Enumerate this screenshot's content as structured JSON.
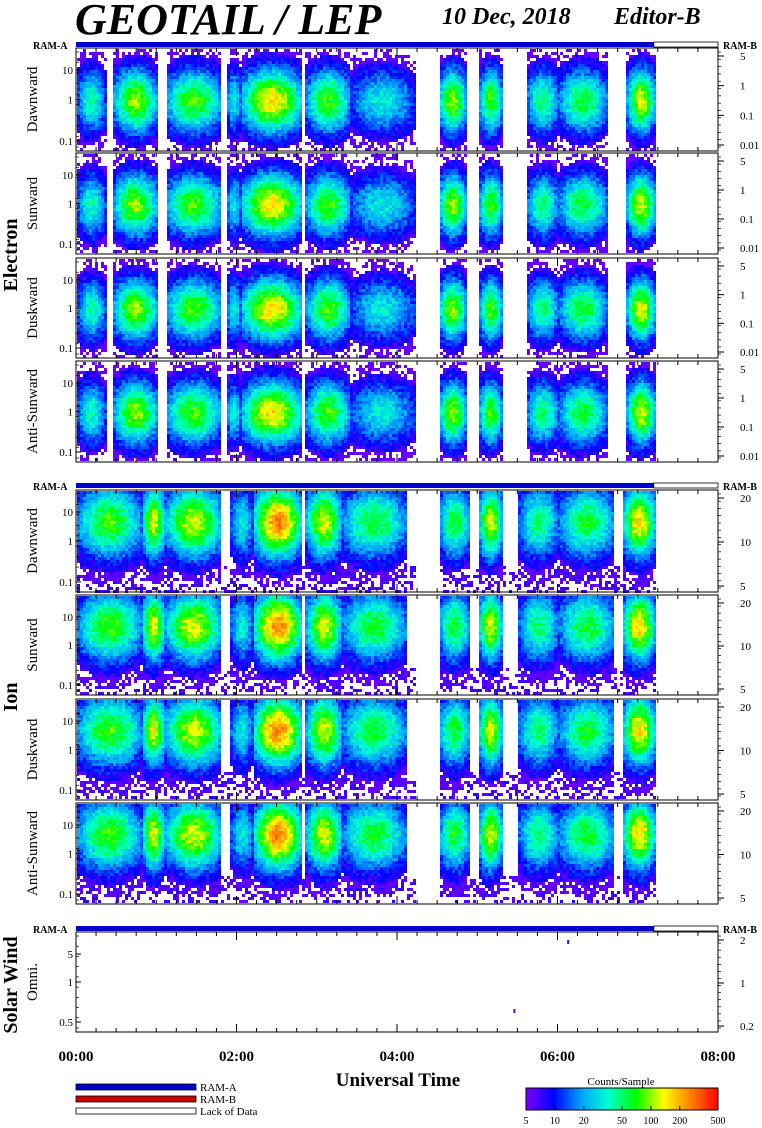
{
  "header": {
    "title": "GEOTAIL / LEP",
    "date": "10 Dec, 2018",
    "editor": "Editor-B"
  },
  "x_axis": {
    "label": "Universal Time",
    "range_hours": [
      0,
      8
    ],
    "tick_labels": [
      "00:00",
      "02:00",
      "04:00",
      "06:00",
      "08:00"
    ]
  },
  "ram_bar": {
    "left_label": "RAM-A",
    "right_label": "RAM-B",
    "ram_a_end_hours": 7.2
  },
  "data_end_hours": 7.2,
  "groups": [
    {
      "label": "Electron",
      "panels": [
        {
          "label": "Dawnward",
          "left_ticks": [
            "10",
            "1",
            "0.1"
          ],
          "right_ticks": [
            "5",
            "1",
            "0.1",
            "0.01"
          ]
        },
        {
          "label": "Sunward",
          "left_ticks": [
            "10",
            "1",
            "0.1"
          ],
          "right_ticks": [
            "5",
            "1",
            "0.1",
            "0.01"
          ]
        },
        {
          "label": "Duskward",
          "left_ticks": [
            "10",
            "1",
            "0.1"
          ],
          "right_ticks": [
            "5",
            "1",
            "0.1",
            "0.01"
          ]
        },
        {
          "label": "Anti-Sunward",
          "left_ticks": [
            "10",
            "1",
            "0.1"
          ],
          "right_ticks": [
            "5",
            "1",
            "0.1",
            "0.01"
          ]
        }
      ]
    },
    {
      "label": "Ion",
      "panels": [
        {
          "label": "Dawnward",
          "left_ticks": [
            "10",
            "1",
            "0.1"
          ],
          "right_ticks": [
            "20",
            "10",
            "5"
          ]
        },
        {
          "label": "Sunward",
          "left_ticks": [
            "10",
            "1",
            "0.1"
          ],
          "right_ticks": [
            "20",
            "10",
            "5"
          ]
        },
        {
          "label": "Duskward",
          "left_ticks": [
            "10",
            "1",
            "0.1"
          ],
          "right_ticks": [
            "20",
            "10",
            "5"
          ]
        },
        {
          "label": "Anti-Sunward",
          "left_ticks": [
            "10",
            "1",
            "0.1"
          ],
          "right_ticks": [
            "20",
            "10",
            "5"
          ]
        }
      ]
    },
    {
      "label": "Solar Wind",
      "panels": [
        {
          "label": "Omni.",
          "left_ticks": [
            "5",
            "1",
            "0.5"
          ],
          "right_ticks": [
            "2",
            "1",
            "0.2"
          ]
        }
      ]
    }
  ],
  "legend": {
    "items": [
      "RAM-A",
      "RAM-B",
      "Lack of Data"
    ],
    "colors": [
      "#0000cc",
      "#cc0000",
      "#ffffff"
    ]
  },
  "colorbar": {
    "title": "Counts/Sample",
    "tick_labels": [
      "5",
      "10",
      "20",
      "50",
      "100",
      "200",
      "500"
    ],
    "stops": [
      "#8000ff",
      "#0000ff",
      "#00a0ff",
      "#00ffd0",
      "#00ff00",
      "#ffff00",
      "#ff8000",
      "#ff0000"
    ]
  },
  "chart_data": {
    "type": "heatmap",
    "title": "GEOTAIL / LEP",
    "xlabel": "Universal Time",
    "xlim_hours": [
      0,
      8
    ],
    "colorbar_label": "Counts/Sample",
    "colorbar_range": [
      5,
      500
    ],
    "data_coverage_hours": [
      0,
      7.2
    ],
    "data_gaps_hours": [
      [
        4.2,
        4.5
      ]
    ],
    "electron_intensity_blobs": [
      {
        "start": 0.0,
        "end": 0.35,
        "level": 0.45
      },
      {
        "start": 0.45,
        "end": 1.0,
        "level": 0.65
      },
      {
        "start": 1.1,
        "end": 1.8,
        "level": 0.6
      },
      {
        "start": 1.85,
        "end": 2.05,
        "level": 0.4
      },
      {
        "start": 2.05,
        "end": 2.8,
        "level": 0.75
      },
      {
        "start": 2.85,
        "end": 3.4,
        "level": 0.6
      },
      {
        "start": 3.4,
        "end": 4.2,
        "level": 0.4
      },
      {
        "start": 4.5,
        "end": 4.85,
        "level": 0.65
      },
      {
        "start": 5.0,
        "end": 5.3,
        "level": 0.6
      },
      {
        "start": 5.6,
        "end": 6.0,
        "level": 0.5
      },
      {
        "start": 6.0,
        "end": 6.6,
        "level": 0.55
      },
      {
        "start": 6.85,
        "end": 7.2,
        "level": 0.7
      }
    ],
    "ion_intensity_blobs": [
      {
        "start": 0.0,
        "end": 0.8,
        "level": 0.6
      },
      {
        "start": 0.8,
        "end": 1.1,
        "level": 0.7
      },
      {
        "start": 1.1,
        "end": 1.8,
        "level": 0.7
      },
      {
        "start": 1.9,
        "end": 2.2,
        "level": 0.4
      },
      {
        "start": 2.2,
        "end": 2.8,
        "level": 0.85
      },
      {
        "start": 2.85,
        "end": 3.3,
        "level": 0.7
      },
      {
        "start": 3.3,
        "end": 4.1,
        "level": 0.55
      },
      {
        "start": 4.5,
        "end": 4.9,
        "level": 0.55
      },
      {
        "start": 5.0,
        "end": 5.3,
        "level": 0.7
      },
      {
        "start": 5.5,
        "end": 6.0,
        "level": 0.5
      },
      {
        "start": 6.0,
        "end": 6.7,
        "level": 0.55
      },
      {
        "start": 6.8,
        "end": 7.2,
        "level": 0.75
      }
    ]
  }
}
